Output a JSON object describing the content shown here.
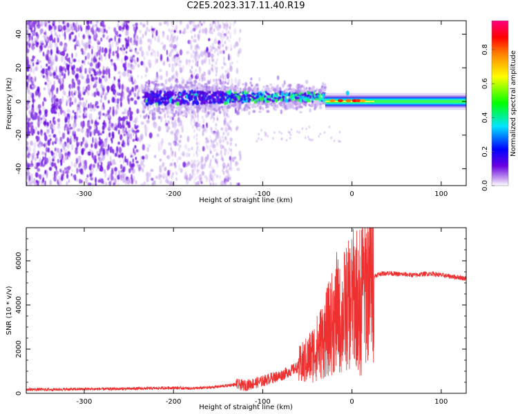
{
  "page_title": "C2E5.2023.317.11.40.R19",
  "chart_data": [
    {
      "type": "heatmap",
      "title": "C2E5.2023.317.11.40.R19",
      "xlabel": "Height of straight line (km)",
      "ylabel": "Frequency (Hz)",
      "xlim": [
        -365,
        128
      ],
      "ylim": [
        -50,
        48
      ],
      "x_ticks": [
        -300,
        -200,
        -100,
        0,
        100
      ],
      "y_ticks": [
        -40,
        -20,
        0,
        20,
        40
      ],
      "x_tick_labels": [
        "-300",
        "-200",
        "-100",
        "0",
        "100"
      ],
      "y_tick_labels": [
        "-40",
        "-20",
        "0",
        "20",
        "40"
      ],
      "colorbar": {
        "label": "Normalized spectral amplitude",
        "range": [
          0,
          0.97
        ],
        "ticks": [
          0,
          0.2,
          0.4,
          0.6,
          0.8
        ],
        "tick_labels": [
          "0.0",
          "0.2",
          "0.4",
          "0.6",
          "0.8"
        ],
        "colormap": [
          "#ffffff",
          "#d9c2f2",
          "#6a00e0",
          "#0000ff",
          "#00e5ff",
          "#00ff00",
          "#ffff00",
          "#ff8000",
          "#ff0000",
          "#ff0080"
        ]
      },
      "grid": false
    },
    {
      "type": "line",
      "xlabel": "Height of straight line (km)",
      "ylabel": "SNR (10 * v/v)",
      "xlim": [
        -365,
        128
      ],
      "ylim": [
        0,
        7500
      ],
      "x_ticks": [
        -300,
        -200,
        -100,
        0,
        100
      ],
      "y_ticks": [
        0,
        2000,
        4000,
        6000
      ],
      "x_tick_labels": [
        "-300",
        "-200",
        "-100",
        "0",
        "100"
      ],
      "y_tick_labels": [
        "0",
        "2000",
        "4000",
        "6000"
      ],
      "line_color": "#ee3030",
      "x": [
        -365,
        -340,
        -300,
        -260,
        -220,
        -200,
        -180,
        -160,
        -150,
        -140,
        -130,
        -120,
        -110,
        -100,
        -90,
        -80,
        -70,
        -60,
        -50,
        -40,
        -35,
        -30,
        -25,
        -20,
        -15,
        -12,
        -10,
        -5,
        0,
        5,
        8,
        10,
        15,
        20,
        25,
        30,
        40,
        50,
        60,
        70,
        80,
        90,
        100,
        110,
        120,
        128
      ],
      "y": [
        180,
        170,
        190,
        200,
        230,
        250,
        220,
        260,
        300,
        350,
        400,
        350,
        450,
        550,
        700,
        800,
        1000,
        1200,
        1500,
        2000,
        2300,
        2600,
        3000,
        3300,
        3600,
        3000,
        3700,
        3900,
        4200,
        4500,
        3500,
        4300,
        4900,
        5100,
        5300,
        5400,
        5450,
        5400,
        5380,
        5350,
        5400,
        5420,
        5350,
        5300,
        5250,
        5200
      ],
      "grid": false
    }
  ]
}
